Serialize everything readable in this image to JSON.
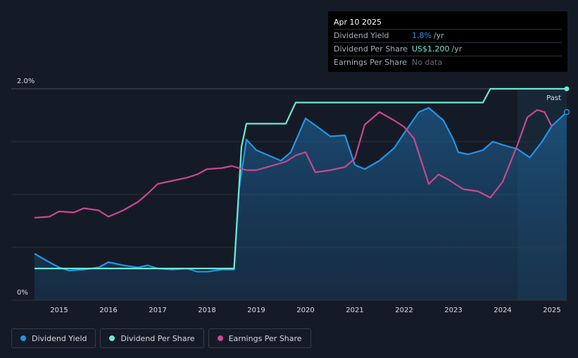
{
  "tooltip": {
    "date": "Apr 10 2025",
    "rows": [
      {
        "label": "Dividend Yield",
        "value": "1.8%",
        "unit": "/yr"
      },
      {
        "label": "Dividend Per Share",
        "value": "US$1.200",
        "unit": "/yr"
      },
      {
        "label": "Earnings Per Share",
        "value": "No data"
      }
    ]
  },
  "legend": [
    {
      "label": "Dividend Yield",
      "color": "#2394e8"
    },
    {
      "label": "Dividend Per Share",
      "color": "#6ce8d2"
    },
    {
      "label": "Earnings Per Share",
      "color": "#c9488f"
    }
  ],
  "chart_data": {
    "type": "line",
    "ytick_labels": [
      "2.0%",
      "0%"
    ],
    "ylim": [
      0,
      2.0
    ],
    "xlim": [
      2014.5,
      2025.3
    ],
    "x_ticks": [
      2015,
      2016,
      2017,
      2018,
      2019,
      2020,
      2021,
      2022,
      2023,
      2024,
      2025
    ],
    "grid": true,
    "forecast_label": "Past",
    "forecast_start": 2024.3,
    "series": [
      {
        "name": "Dividend Yield",
        "color": "#2394e8",
        "area": true,
        "points": [
          [
            2014.5,
            0.44
          ],
          [
            2014.8,
            0.36
          ],
          [
            2015.0,
            0.31
          ],
          [
            2015.2,
            0.28
          ],
          [
            2015.5,
            0.29
          ],
          [
            2015.8,
            0.31
          ],
          [
            2016.0,
            0.36
          ],
          [
            2016.3,
            0.33
          ],
          [
            2016.6,
            0.31
          ],
          [
            2016.8,
            0.33
          ],
          [
            2017.0,
            0.3
          ],
          [
            2017.3,
            0.29
          ],
          [
            2017.6,
            0.3
          ],
          [
            2017.8,
            0.27
          ],
          [
            2018.0,
            0.27
          ],
          [
            2018.3,
            0.29
          ],
          [
            2018.55,
            0.29
          ],
          [
            2018.65,
            1.05
          ],
          [
            2018.8,
            1.52
          ],
          [
            2019.0,
            1.42
          ],
          [
            2019.3,
            1.36
          ],
          [
            2019.5,
            1.32
          ],
          [
            2019.7,
            1.4
          ],
          [
            2020.0,
            1.72
          ],
          [
            2020.3,
            1.62
          ],
          [
            2020.5,
            1.55
          ],
          [
            2020.8,
            1.56
          ],
          [
            2021.0,
            1.28
          ],
          [
            2021.2,
            1.24
          ],
          [
            2021.5,
            1.32
          ],
          [
            2021.8,
            1.44
          ],
          [
            2022.0,
            1.58
          ],
          [
            2022.3,
            1.78
          ],
          [
            2022.5,
            1.82
          ],
          [
            2022.8,
            1.7
          ],
          [
            2023.0,
            1.52
          ],
          [
            2023.1,
            1.4
          ],
          [
            2023.3,
            1.38
          ],
          [
            2023.6,
            1.42
          ],
          [
            2023.8,
            1.5
          ],
          [
            2024.0,
            1.47
          ],
          [
            2024.3,
            1.43
          ],
          [
            2024.55,
            1.35
          ],
          [
            2024.8,
            1.5
          ],
          [
            2025.0,
            1.65
          ],
          [
            2025.3,
            1.78
          ]
        ]
      },
      {
        "name": "Dividend Per Share",
        "color": "#6ce8d2",
        "area": false,
        "points": [
          [
            2014.5,
            0.3
          ],
          [
            2018.55,
            0.3
          ],
          [
            2018.7,
            1.45
          ],
          [
            2018.8,
            1.67
          ],
          [
            2019.6,
            1.67
          ],
          [
            2019.8,
            1.87
          ],
          [
            2023.6,
            1.87
          ],
          [
            2023.75,
            2.0
          ],
          [
            2025.3,
            2.0
          ]
        ]
      },
      {
        "name": "Earnings Per Share",
        "color": "#c9488f",
        "area": false,
        "points": [
          [
            2014.5,
            0.78
          ],
          [
            2014.8,
            0.79
          ],
          [
            2015.0,
            0.84
          ],
          [
            2015.3,
            0.83
          ],
          [
            2015.5,
            0.87
          ],
          [
            2015.8,
            0.85
          ],
          [
            2016.0,
            0.79
          ],
          [
            2016.3,
            0.85
          ],
          [
            2016.6,
            0.93
          ],
          [
            2016.8,
            1.01
          ],
          [
            2017.0,
            1.1
          ],
          [
            2017.3,
            1.13
          ],
          [
            2017.6,
            1.16
          ],
          [
            2017.8,
            1.19
          ],
          [
            2018.0,
            1.24
          ],
          [
            2018.3,
            1.25
          ],
          [
            2018.5,
            1.27
          ],
          [
            2018.8,
            1.23
          ],
          [
            2019.0,
            1.23
          ],
          [
            2019.3,
            1.27
          ],
          [
            2019.6,
            1.31
          ],
          [
            2019.8,
            1.37
          ],
          [
            2020.0,
            1.4
          ],
          [
            2020.2,
            1.21
          ],
          [
            2020.5,
            1.23
          ],
          [
            2020.8,
            1.26
          ],
          [
            2021.0,
            1.34
          ],
          [
            2021.2,
            1.66
          ],
          [
            2021.5,
            1.78
          ],
          [
            2021.8,
            1.7
          ],
          [
            2022.0,
            1.64
          ],
          [
            2022.2,
            1.53
          ],
          [
            2022.5,
            1.1
          ],
          [
            2022.7,
            1.19
          ],
          [
            2022.9,
            1.14
          ],
          [
            2023.2,
            1.05
          ],
          [
            2023.5,
            1.03
          ],
          [
            2023.75,
            0.97
          ],
          [
            2024.0,
            1.12
          ],
          [
            2024.3,
            1.47
          ],
          [
            2024.5,
            1.73
          ],
          [
            2024.7,
            1.8
          ],
          [
            2024.85,
            1.78
          ],
          [
            2025.0,
            1.64
          ]
        ]
      }
    ]
  }
}
